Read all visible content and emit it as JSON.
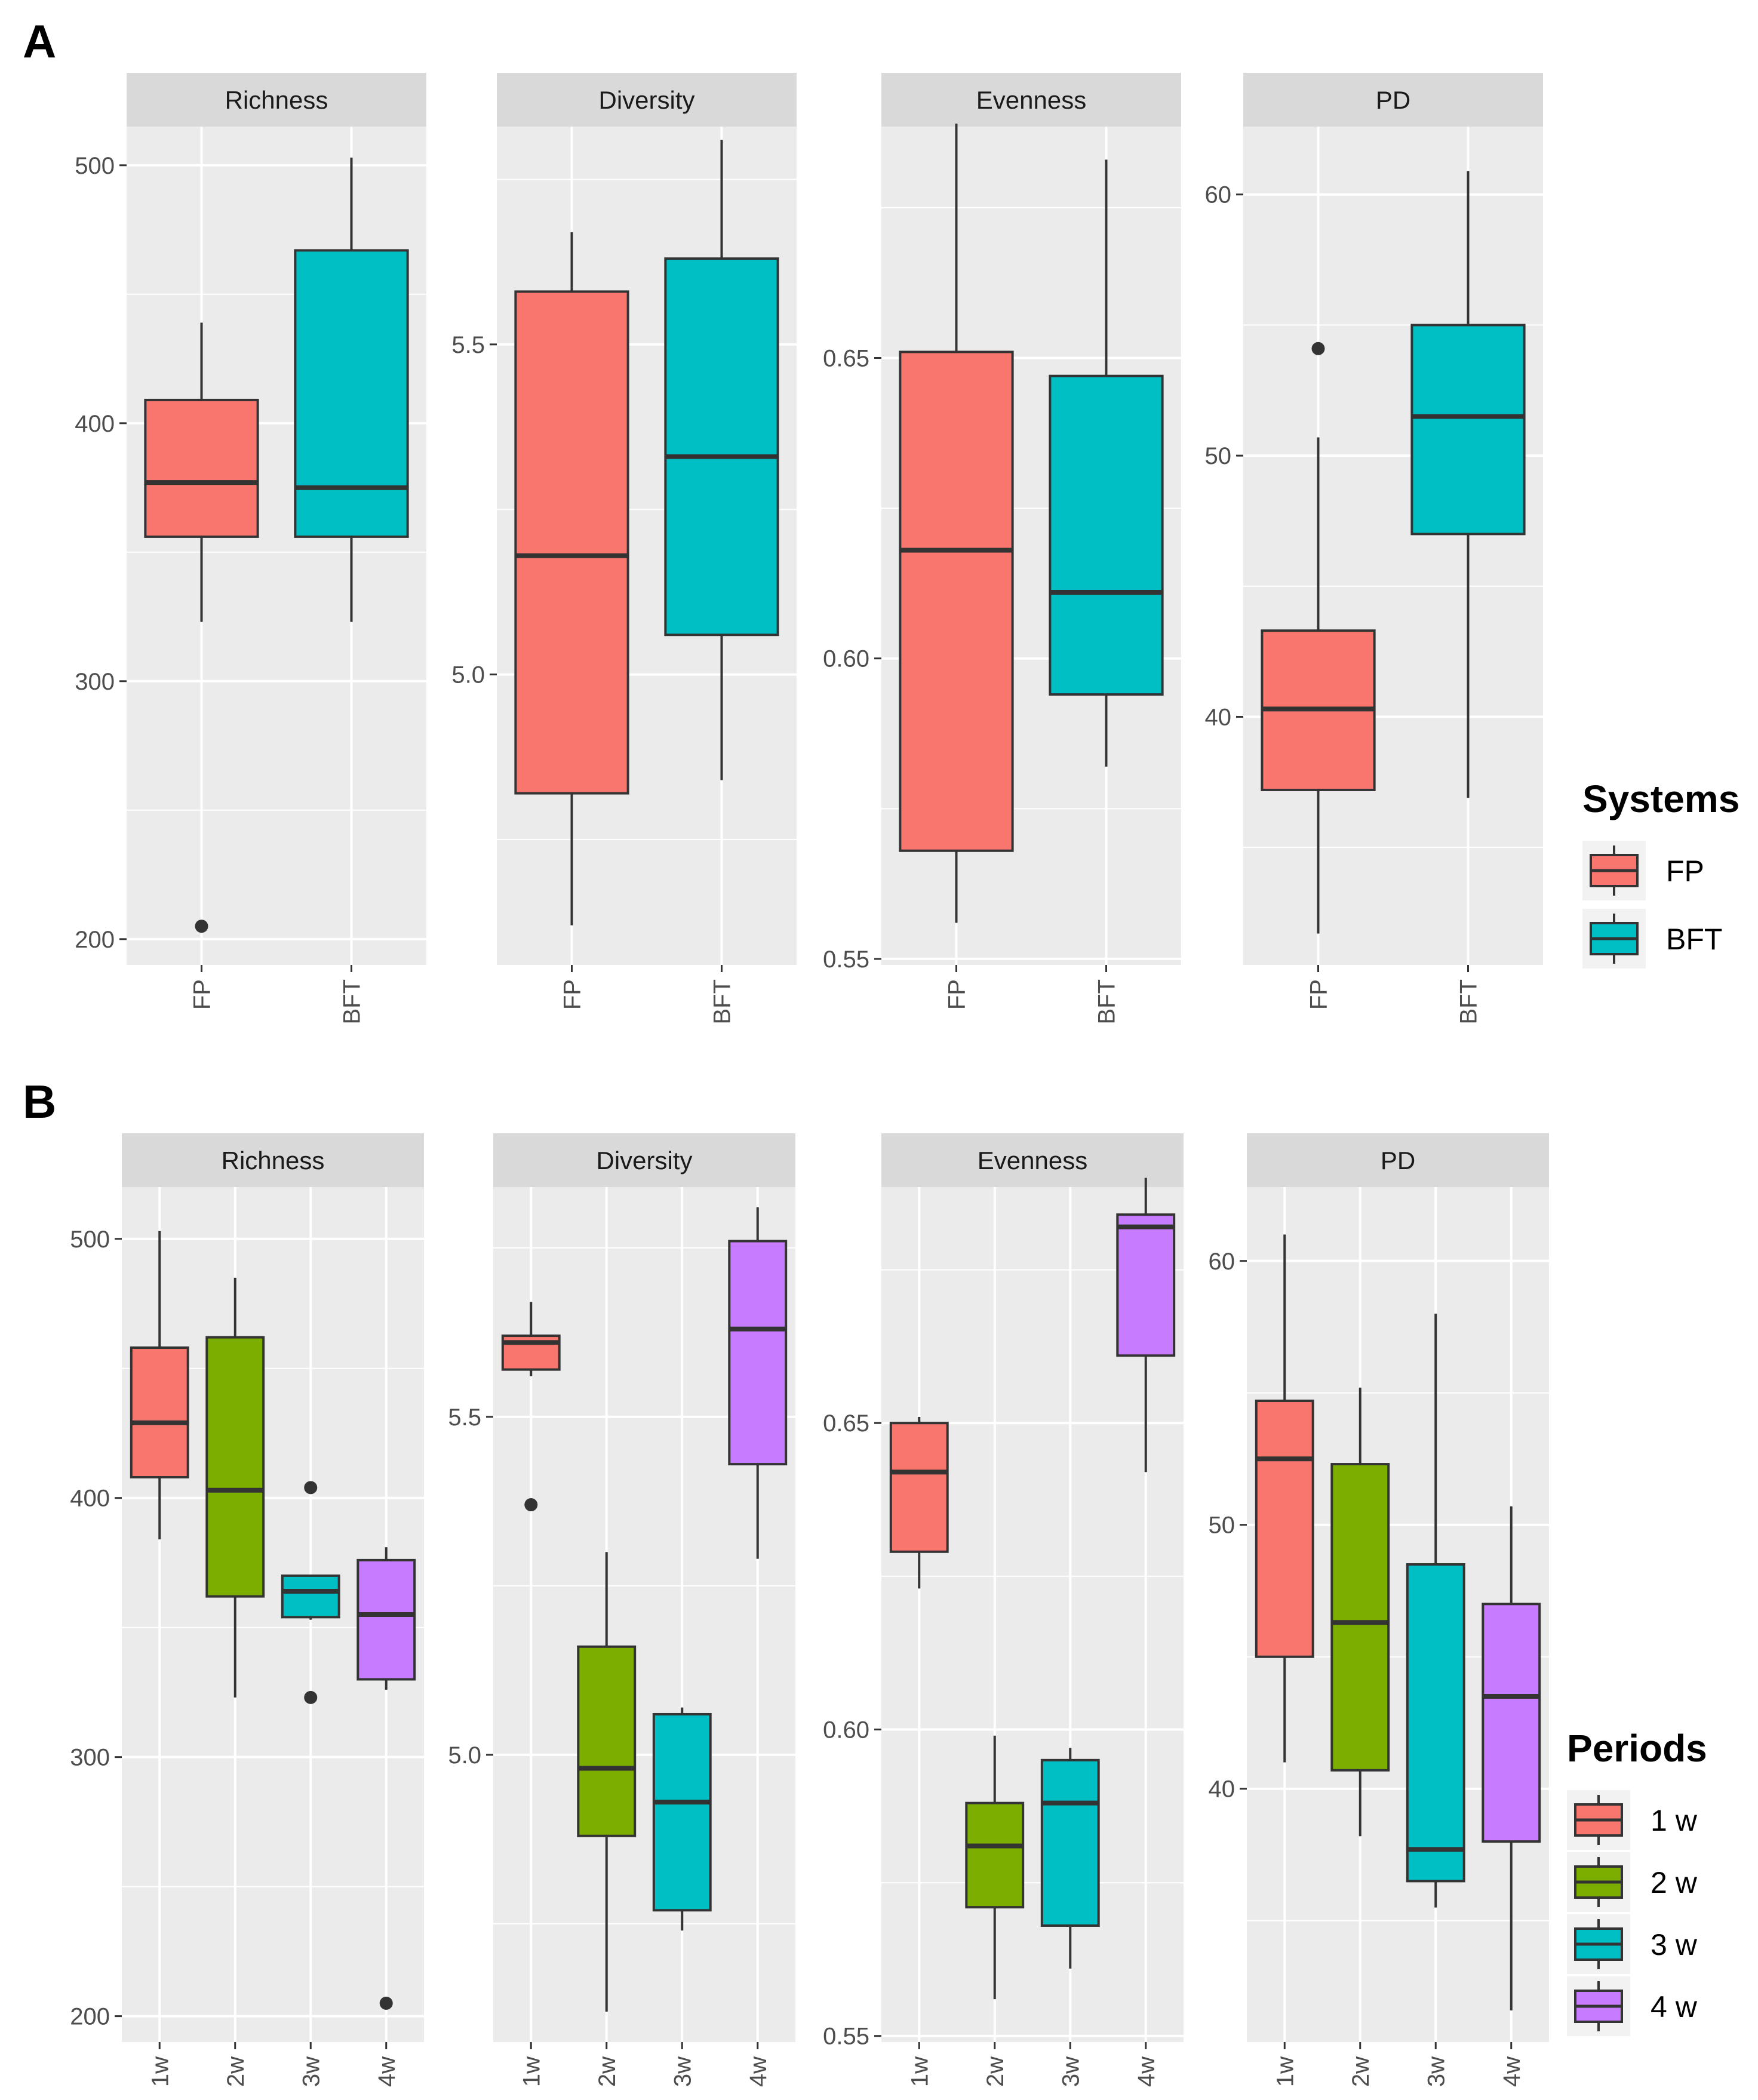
{
  "panels": [
    {
      "letter": "A",
      "legend": {
        "title": "Systems",
        "entries": [
          {
            "label": "FP",
            "color": "#F8766D"
          },
          {
            "label": "BFT",
            "color": "#00BFC4"
          }
        ]
      }
    },
    {
      "letter": "B",
      "legend": {
        "title": "Periods",
        "entries": [
          {
            "label": "1 w",
            "color": "#F8766D"
          },
          {
            "label": "2 w",
            "color": "#7CAE00"
          },
          {
            "label": "3 w",
            "color": "#00BFC4"
          },
          {
            "label": "4 w",
            "color": "#C77CFF"
          }
        ]
      }
    }
  ],
  "chart_data": [
    {
      "type": "boxplot",
      "panel": "A",
      "title": "Richness",
      "categories": [
        "FP",
        "BFT"
      ],
      "ylim": [
        190,
        515
      ],
      "yticks": [
        200,
        300,
        400,
        500
      ],
      "grid": true,
      "boxes": [
        {
          "category": "FP",
          "color": "#F8766D",
          "whisker_low": 323,
          "q1": 356,
          "median": 377,
          "q3": 409,
          "whisker_high": 439,
          "outliers": [
            205
          ]
        },
        {
          "category": "BFT",
          "color": "#00BFC4",
          "whisker_low": 323,
          "q1": 356,
          "median": 375,
          "q3": 467,
          "whisker_high": 503,
          "outliers": []
        }
      ]
    },
    {
      "type": "boxplot",
      "panel": "A",
      "title": "Diversity",
      "categories": [
        "FP",
        "BFT"
      ],
      "ylim": [
        4.56,
        5.83
      ],
      "yticks": [
        5.0,
        5.5
      ],
      "yticklabels": [
        "5.0",
        "5.5"
      ],
      "grid": true,
      "boxes": [
        {
          "category": "FP",
          "color": "#F8766D",
          "whisker_low": 4.62,
          "q1": 4.82,
          "median": 5.18,
          "q3": 5.58,
          "whisker_high": 5.67,
          "outliers": []
        },
        {
          "category": "BFT",
          "color": "#00BFC4",
          "whisker_low": 4.84,
          "q1": 5.06,
          "median": 5.33,
          "q3": 5.63,
          "whisker_high": 5.81,
          "outliers": []
        }
      ]
    },
    {
      "type": "boxplot",
      "panel": "A",
      "title": "Evenness",
      "categories": [
        "FP",
        "BFT"
      ],
      "ylim": [
        0.549,
        0.6885
      ],
      "yticks": [
        0.55,
        0.6,
        0.65
      ],
      "yticklabels": [
        "0.55",
        "0.60",
        "0.65"
      ],
      "grid": true,
      "boxes": [
        {
          "category": "FP",
          "color": "#F8766D",
          "whisker_low": 0.556,
          "q1": 0.568,
          "median": 0.618,
          "q3": 0.651,
          "whisker_high": 0.689,
          "outliers": []
        },
        {
          "category": "BFT",
          "color": "#00BFC4",
          "whisker_low": 0.582,
          "q1": 0.594,
          "median": 0.611,
          "q3": 0.647,
          "whisker_high": 0.683,
          "outliers": []
        }
      ]
    },
    {
      "type": "boxplot",
      "panel": "A",
      "title": "PD",
      "categories": [
        "FP",
        "BFT"
      ],
      "ylim": [
        30.5,
        62.6
      ],
      "yticks": [
        40,
        50,
        60
      ],
      "grid": true,
      "boxes": [
        {
          "category": "FP",
          "color": "#F8766D",
          "whisker_low": 31.7,
          "q1": 37.2,
          "median": 40.3,
          "q3": 43.3,
          "whisker_high": 50.7,
          "outliers": [
            54.1
          ]
        },
        {
          "category": "BFT",
          "color": "#00BFC4",
          "whisker_low": 36.9,
          "q1": 47.0,
          "median": 51.5,
          "q3": 55.0,
          "whisker_high": 60.9,
          "outliers": []
        }
      ]
    },
    {
      "type": "boxplot",
      "panel": "B",
      "title": "Richness",
      "categories": [
        "1w",
        "2w",
        "3w",
        "4w"
      ],
      "ylim": [
        190,
        520
      ],
      "yticks": [
        200,
        300,
        400,
        500
      ],
      "grid": true,
      "boxes": [
        {
          "category": "1w",
          "color": "#F8766D",
          "whisker_low": 384,
          "q1": 408,
          "median": 429,
          "q3": 458,
          "whisker_high": 503,
          "outliers": []
        },
        {
          "category": "2w",
          "color": "#7CAE00",
          "whisker_low": 323,
          "q1": 362,
          "median": 403,
          "q3": 462,
          "whisker_high": 485,
          "outliers": []
        },
        {
          "category": "3w",
          "color": "#00BFC4",
          "whisker_low": 353,
          "q1": 354,
          "median": 364,
          "q3": 370,
          "whisker_high": 370,
          "outliers": [
            404,
            323
          ]
        },
        {
          "category": "4w",
          "color": "#C77CFF",
          "whisker_low": 326,
          "q1": 330,
          "median": 355,
          "q3": 376,
          "whisker_high": 381,
          "outliers": [
            205
          ]
        }
      ]
    },
    {
      "type": "boxplot",
      "panel": "B",
      "title": "Diversity",
      "categories": [
        "1w",
        "2w",
        "3w",
        "4w"
      ],
      "ylim": [
        4.575,
        5.84
      ],
      "yticks": [
        5.0,
        5.5
      ],
      "yticklabels": [
        "5.0",
        "5.5"
      ],
      "grid": true,
      "boxes": [
        {
          "category": "1w",
          "color": "#F8766D",
          "whisker_low": 5.56,
          "q1": 5.57,
          "median": 5.61,
          "q3": 5.62,
          "whisker_high": 5.67,
          "outliers": [
            5.37
          ]
        },
        {
          "category": "2w",
          "color": "#7CAE00",
          "whisker_low": 4.62,
          "q1": 4.88,
          "median": 4.98,
          "q3": 5.16,
          "whisker_high": 5.3,
          "outliers": []
        },
        {
          "category": "3w",
          "color": "#00BFC4",
          "whisker_low": 4.74,
          "q1": 4.77,
          "median": 4.93,
          "q3": 5.06,
          "whisker_high": 5.07,
          "outliers": []
        },
        {
          "category": "4w",
          "color": "#C77CFF",
          "whisker_low": 5.29,
          "q1": 5.43,
          "median": 5.63,
          "q3": 5.76,
          "whisker_high": 5.81,
          "outliers": []
        }
      ]
    },
    {
      "type": "boxplot",
      "panel": "B",
      "title": "Evenness",
      "categories": [
        "1w",
        "2w",
        "3w",
        "4w"
      ],
      "ylim": [
        0.549,
        0.6885
      ],
      "yticks": [
        0.55,
        0.6,
        0.65
      ],
      "yticklabels": [
        "0.55",
        "0.60",
        "0.65"
      ],
      "grid": true,
      "boxes": [
        {
          "category": "1w",
          "color": "#F8766D",
          "whisker_low": 0.623,
          "q1": 0.629,
          "median": 0.642,
          "q3": 0.65,
          "whisker_high": 0.651,
          "outliers": []
        },
        {
          "category": "2w",
          "color": "#7CAE00",
          "whisker_low": 0.556,
          "q1": 0.571,
          "median": 0.581,
          "q3": 0.588,
          "whisker_high": 0.599,
          "outliers": []
        },
        {
          "category": "3w",
          "color": "#00BFC4",
          "whisker_low": 0.561,
          "q1": 0.568,
          "median": 0.588,
          "q3": 0.595,
          "whisker_high": 0.597,
          "outliers": []
        },
        {
          "category": "4w",
          "color": "#C77CFF",
          "whisker_low": 0.642,
          "q1": 0.661,
          "median": 0.682,
          "q3": 0.684,
          "whisker_high": 0.69,
          "outliers": []
        }
      ]
    },
    {
      "type": "boxplot",
      "panel": "B",
      "title": "PD",
      "categories": [
        "1w",
        "2w",
        "3w",
        "4w"
      ],
      "ylim": [
        30.4,
        62.8
      ],
      "yticks": [
        40,
        50,
        60
      ],
      "grid": true,
      "boxes": [
        {
          "category": "1w",
          "color": "#F8766D",
          "whisker_low": 41.0,
          "q1": 45.0,
          "median": 52.5,
          "q3": 54.7,
          "whisker_high": 61.0,
          "outliers": []
        },
        {
          "category": "2w",
          "color": "#7CAE00",
          "whisker_low": 38.2,
          "q1": 40.7,
          "median": 46.3,
          "q3": 52.3,
          "whisker_high": 55.2,
          "outliers": []
        },
        {
          "category": "3w",
          "color": "#00BFC4",
          "whisker_low": 35.5,
          "q1": 36.5,
          "median": 37.7,
          "q3": 48.5,
          "whisker_high": 58.0,
          "outliers": []
        },
        {
          "category": "4w",
          "color": "#C77CFF",
          "whisker_low": 31.6,
          "q1": 38.0,
          "median": 43.5,
          "q3": 47.0,
          "whisker_high": 50.7,
          "outliers": []
        }
      ]
    }
  ]
}
